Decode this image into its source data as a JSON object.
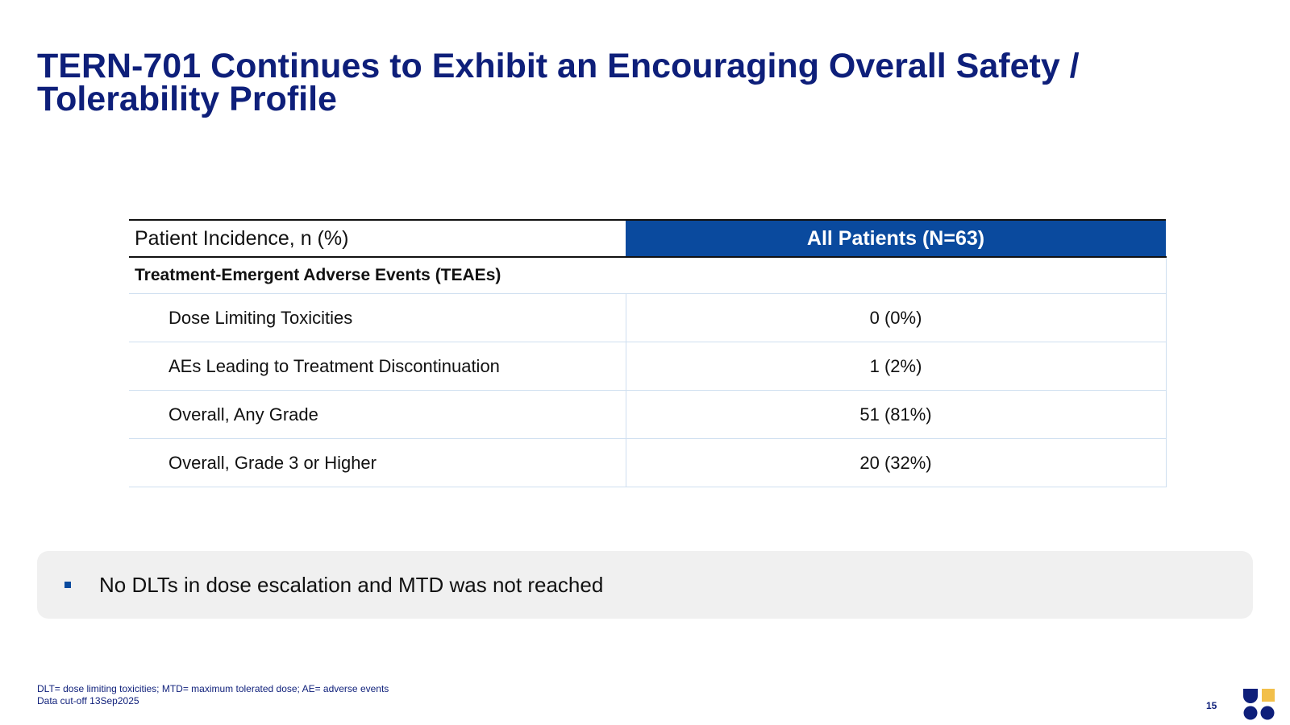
{
  "slide": {
    "title_line1": "TERN-701 Continues to Exhibit an Encouraging Overall Safety /",
    "title_line2": "Tolerability Profile",
    "page_number": "15"
  },
  "table": {
    "header_left": "Patient Incidence, n (%)",
    "header_right": "All Patients (N=63)",
    "section_label": "Treatment-Emergent Adverse Events (TEAEs)",
    "rows": [
      {
        "label": "Dose Limiting Toxicities",
        "value": "0 (0%)"
      },
      {
        "label": "AEs Leading to Treatment Discontinuation",
        "value": "1 (2%)"
      },
      {
        "label": "Overall, Any Grade",
        "value": "51 (81%)"
      },
      {
        "label": "Overall, Grade 3 or Higher",
        "value": "20 (32%)"
      }
    ]
  },
  "callout": {
    "bullet_text": "No DLTs in dose escalation and MTD was not reached"
  },
  "footnote": {
    "line1": "DLT= dose limiting toxicities; MTD= maximum tolerated dose; AE= adverse events",
    "line2": "Data cut-off 13Sep2025"
  },
  "colors": {
    "title": "#0e1f7a",
    "header_fill": "#0a4a9e",
    "callout_bg": "#f0f0f0",
    "logo_navy": "#0e1f7a",
    "logo_gold": "#f2bf4a"
  },
  "logo": {
    "icon": "company-logo-icon"
  }
}
